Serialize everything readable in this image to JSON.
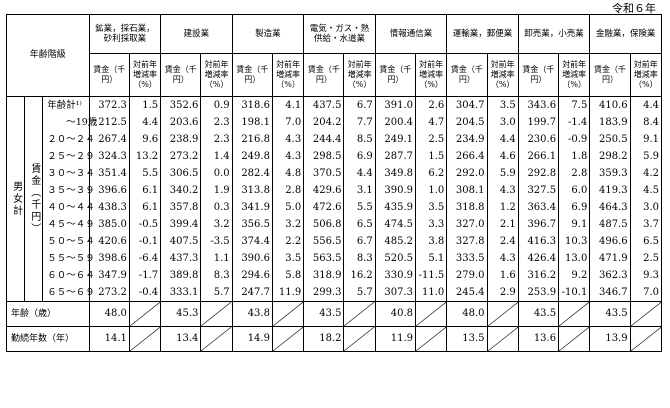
{
  "era": "令和６年",
  "header": {
    "age_class": "年齢階級",
    "industries": [
      "鉱業，採石業，砂利採取業",
      "建設業",
      "製造業",
      "電気・ガス・熱供給・水道業",
      "情報通信業",
      "運輸業，郵便業",
      "卸売業，小売業",
      "金融業，保険業"
    ],
    "wage": "賃金（千円）",
    "change": "対前年増減率（%）"
  },
  "side": {
    "outer": "男女計",
    "inner": "賃金（千円）"
  },
  "rows": [
    {
      "age": "年齢計¹⁾",
      "v": [
        "372.3",
        "1.5",
        "352.6",
        "0.9",
        "318.6",
        "4.1",
        "437.5",
        "6.7",
        "391.0",
        "2.6",
        "304.7",
        "3.5",
        "343.6",
        "7.5",
        "410.6",
        "4.4"
      ]
    },
    {
      "age": "　　～19歳",
      "v": [
        "212.5",
        "4.4",
        "203.6",
        "2.3",
        "198.1",
        "7.0",
        "204.2",
        "7.7",
        "200.4",
        "4.7",
        "204.5",
        "3.0",
        "199.7",
        "-1.4",
        "183.9",
        "8.4"
      ]
    },
    {
      "age": "２０～２４",
      "v": [
        "267.4",
        "9.6",
        "238.9",
        "2.3",
        "216.8",
        "4.3",
        "244.4",
        "8.5",
        "249.1",
        "2.5",
        "234.9",
        "4.4",
        "230.6",
        "-0.9",
        "250.5",
        "9.1"
      ]
    },
    {
      "age": "２５～２９",
      "v": [
        "324.3",
        "13.2",
        "273.2",
        "1.4",
        "249.8",
        "4.3",
        "298.5",
        "6.9",
        "287.7",
        "1.5",
        "266.4",
        "4.6",
        "266.1",
        "1.8",
        "298.2",
        "5.9"
      ]
    },
    {
      "age": "３０～３４",
      "v": [
        "351.4",
        "5.5",
        "306.5",
        "0.0",
        "282.4",
        "4.8",
        "370.5",
        "4.4",
        "349.8",
        "6.2",
        "292.0",
        "5.9",
        "292.8",
        "2.8",
        "359.3",
        "4.2"
      ]
    },
    {
      "age": "３５～３９",
      "v": [
        "396.6",
        "6.1",
        "340.2",
        "1.9",
        "313.8",
        "2.8",
        "429.6",
        "3.1",
        "390.9",
        "1.0",
        "308.1",
        "4.3",
        "327.5",
        "6.0",
        "419.3",
        "4.5"
      ]
    },
    {
      "age": "４０～４４",
      "v": [
        "438.3",
        "6.1",
        "357.8",
        "0.3",
        "341.9",
        "5.0",
        "472.6",
        "5.5",
        "435.9",
        "3.5",
        "318.8",
        "1.2",
        "363.4",
        "6.9",
        "464.3",
        "3.0"
      ]
    },
    {
      "age": "４５～４９",
      "v": [
        "385.0",
        "-0.5",
        "399.4",
        "3.2",
        "356.5",
        "3.2",
        "506.8",
        "6.5",
        "474.5",
        "3.3",
        "327.0",
        "2.1",
        "396.7",
        "9.1",
        "487.5",
        "3.7"
      ]
    },
    {
      "age": "５０～５４",
      "v": [
        "420.6",
        "-0.1",
        "407.5",
        "-3.5",
        "374.4",
        "2.2",
        "556.5",
        "6.7",
        "485.2",
        "3.8",
        "327.8",
        "2.4",
        "416.3",
        "10.3",
        "496.6",
        "6.5"
      ]
    },
    {
      "age": "５５～５９",
      "v": [
        "398.6",
        "-6.4",
        "437.3",
        "1.1",
        "390.6",
        "3.5",
        "563.5",
        "8.3",
        "520.5",
        "5.1",
        "333.5",
        "4.3",
        "426.4",
        "13.0",
        "471.9",
        "2.5"
      ]
    },
    {
      "age": "６０～６４",
      "v": [
        "347.9",
        "-1.7",
        "389.8",
        "8.3",
        "294.6",
        "5.8",
        "318.9",
        "16.2",
        "330.9",
        "-11.5",
        "279.0",
        "1.6",
        "316.2",
        "9.2",
        "362.3",
        "9.3"
      ]
    },
    {
      "age": "６５～６９",
      "v": [
        "273.2",
        "-0.4",
        "333.1",
        "5.7",
        "247.7",
        "11.9",
        "299.3",
        "5.7",
        "307.3",
        "11.0",
        "245.4",
        "2.9",
        "253.9",
        "-10.1",
        "346.7",
        "7.0"
      ]
    }
  ],
  "footer": [
    {
      "label": "年齢（歳）",
      "v": [
        "48.0",
        "45.3",
        "43.8",
        "43.5",
        "40.8",
        "48.0",
        "43.5",
        "43.5"
      ]
    },
    {
      "label": "勤続年数（年）",
      "v": [
        "14.1",
        "13.4",
        "14.9",
        "18.2",
        "11.9",
        "13.5",
        "13.6",
        "13.9"
      ]
    }
  ]
}
